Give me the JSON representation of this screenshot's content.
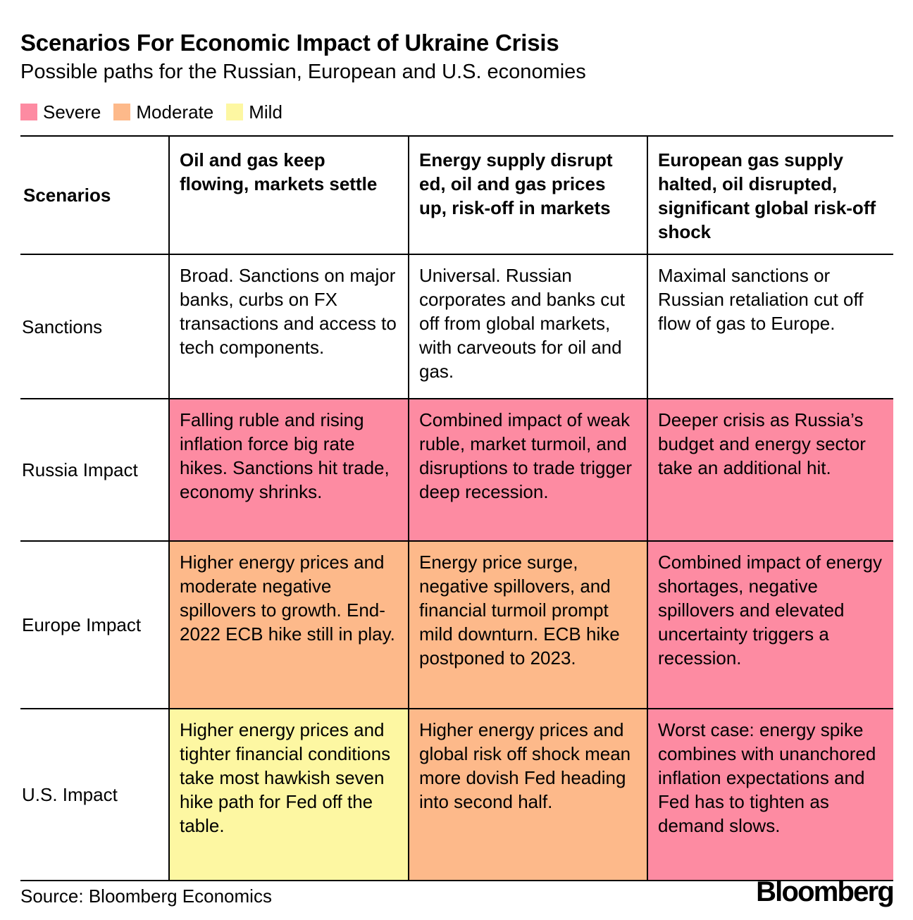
{
  "title": "Scenarios For Economic Impact of Ukraine Crisis",
  "subtitle": "Possible paths for the Russian, European and U.S. economies",
  "legend": [
    {
      "label": "Severe",
      "color": "#fd8ba2"
    },
    {
      "label": "Moderate",
      "color": "#fdb98a"
    },
    {
      "label": "Mild",
      "color": "#fdf7a2"
    }
  ],
  "colors": {
    "severe": "#fd8ba2",
    "moderate": "#fdb98a",
    "mild": "#fdf7a2",
    "none": "#ffffff"
  },
  "table": {
    "header_label": "Scenarios",
    "scenarios": [
      "Oil and gas keep flowing, markets settle",
      "Energy supply disrupt ed, oil and gas prices up, risk-off in markets",
      "European gas supply halted, oil disrupted, significant global risk-off shock"
    ],
    "rows": [
      {
        "label": "Sanctions",
        "cells": [
          {
            "text": "Broad. Sanctions on major banks, curbs on FX transactions and access to tech components.",
            "severity": "none"
          },
          {
            "text": "Universal. Russian corporates and banks cut off from global markets, with carveouts for oil and gas.",
            "severity": "none"
          },
          {
            "text": "Maximal sanctions or Russian retaliation cut off flow of gas to Europe.",
            "severity": "none"
          }
        ]
      },
      {
        "label": "Russia Impact",
        "cells": [
          {
            "text": "Falling ruble and rising inflation force big rate hikes. Sanctions hit trade, economy shrinks.",
            "severity": "severe"
          },
          {
            "text": "Combined impact of weak ruble, market turmoil, and disruptions to trade trigger deep recession.",
            "severity": "severe"
          },
          {
            "text": "Deeper crisis as Russia’s budget and energy sector take an additional hit.",
            "severity": "severe"
          }
        ]
      },
      {
        "label": "Europe Impact",
        "cells": [
          {
            "text": "Higher energy prices and moderate negative spillovers to growth. End-2022 ECB hike still in play.",
            "severity": "moderate"
          },
          {
            "text": "Energy price surge, negative spillovers, and financial turmoil prompt mild downturn. ECB hike postponed to 2023.",
            "severity": "moderate"
          },
          {
            "text": "Combined impact of energy shortages, negative spillovers and elevated uncertainty triggers a recession.",
            "severity": "severe"
          }
        ]
      },
      {
        "label": "U.S. Impact",
        "cells": [
          {
            "text": "Higher energy prices and tighter financial conditions take most hawkish seven hike path for Fed off the table.",
            "severity": "mild"
          },
          {
            "text": "Higher energy prices and global risk off shock mean more dovish Fed heading into second half.",
            "severity": "moderate"
          },
          {
            "text": "Worst case: energy spike combines with unanchored inflation expectations and Fed has to tighten as demand slows.",
            "severity": "severe"
          }
        ]
      }
    ]
  },
  "source": "Source: Bloomberg Economics",
  "logo": "Bloomberg"
}
